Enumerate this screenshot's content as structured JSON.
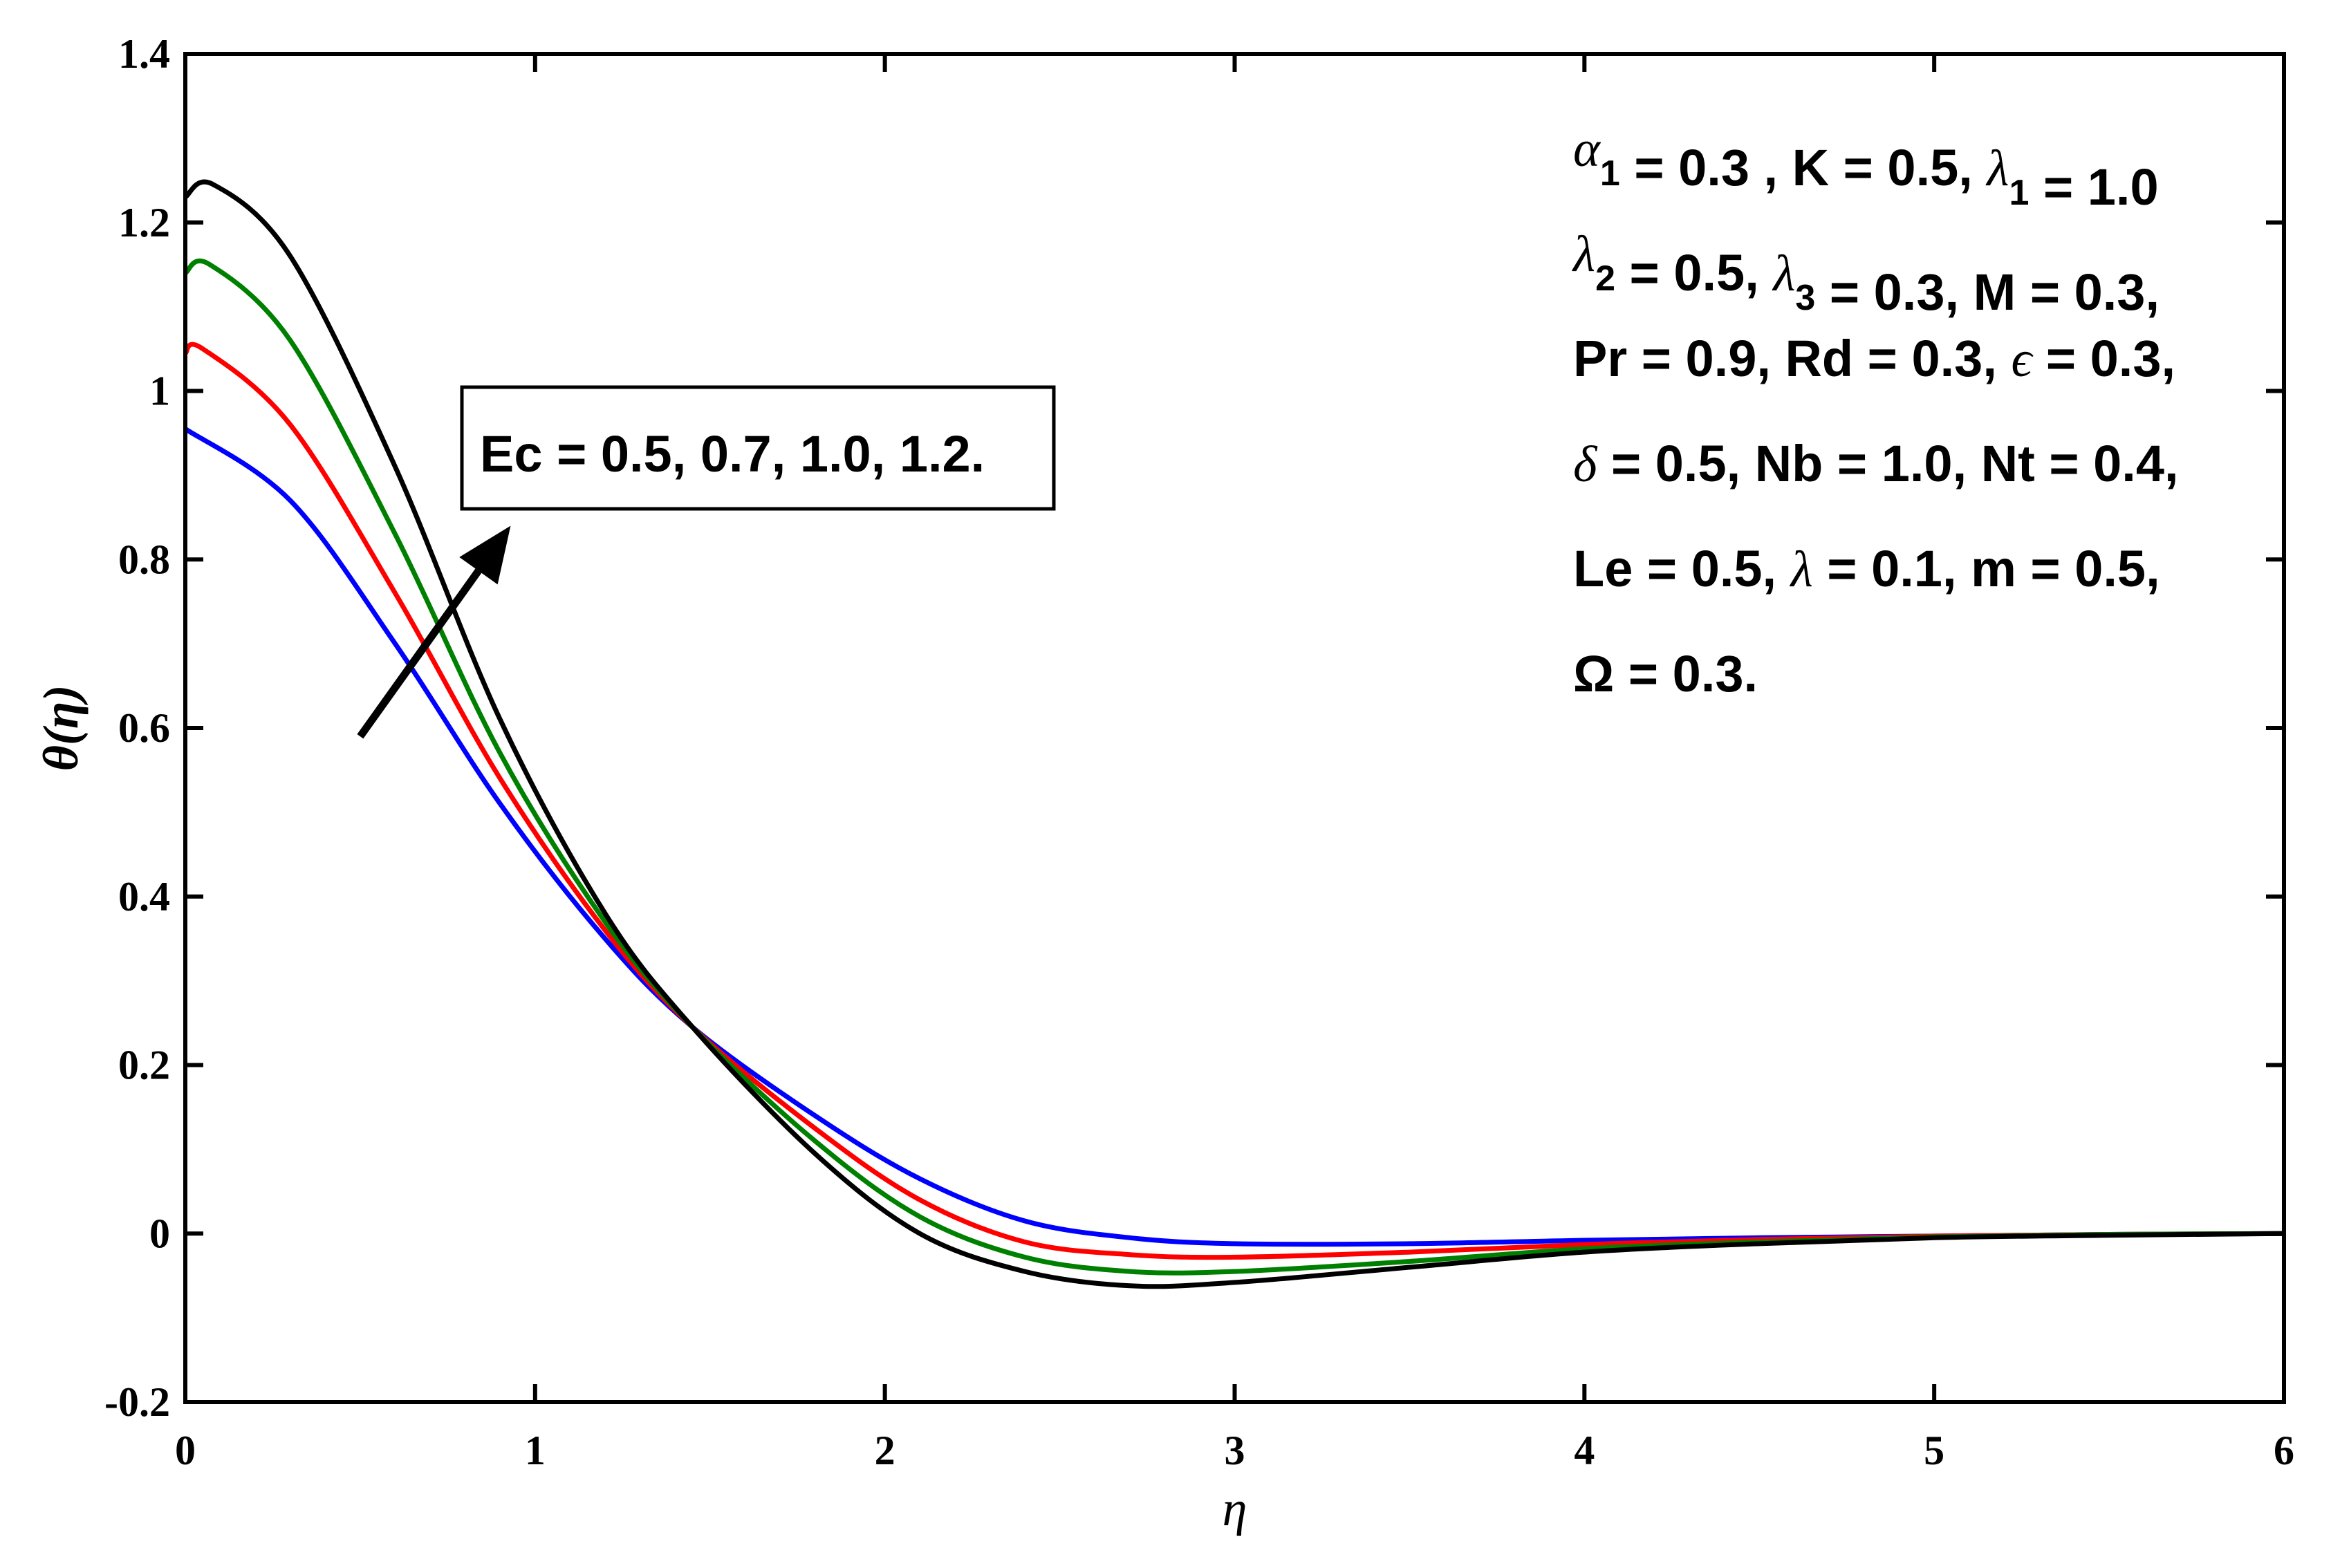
{
  "chart_data": {
    "type": "line",
    "xlabel": "η",
    "ylabel": "θ(η)",
    "xlim": [
      0,
      6
    ],
    "ylim": [
      -0.2,
      1.4
    ],
    "xticks": [
      "0",
      "1",
      "2",
      "3",
      "4",
      "5",
      "6"
    ],
    "yticks": [
      "-0.2",
      "0",
      "0.2",
      "0.4",
      "0.6",
      "0.8",
      "1",
      "1.2",
      "1.4"
    ],
    "grid": false,
    "series": [
      {
        "color": "#0000ff",
        "x": [
          0,
          0.3,
          0.6,
          0.9,
          1.2,
          1.45,
          1.8,
          2.1,
          2.4,
          2.7,
          3.0,
          3.5,
          4.0,
          4.5,
          5.0,
          5.5,
          6.0
        ],
        "y": [
          0.955,
          0.87,
          0.7,
          0.51,
          0.35,
          0.245,
          0.14,
          0.065,
          0.015,
          -0.005,
          -0.012,
          -0.012,
          -0.008,
          -0.005,
          -0.003,
          -0.001,
          0.0
        ]
      },
      {
        "color": "#ff0000",
        "x": [
          0,
          0.05,
          0.3,
          0.6,
          0.9,
          1.2,
          1.45,
          1.8,
          2.1,
          2.4,
          2.7,
          3.0,
          3.5,
          4.0,
          4.5,
          5.0,
          5.5,
          6.0
        ],
        "y": [
          1.045,
          1.05,
          0.96,
          0.76,
          0.54,
          0.36,
          0.245,
          0.125,
          0.04,
          -0.01,
          -0.025,
          -0.028,
          -0.022,
          -0.013,
          -0.007,
          -0.003,
          -0.001,
          0.0
        ]
      },
      {
        "color": "#008000",
        "x": [
          0,
          0.07,
          0.3,
          0.6,
          0.9,
          1.2,
          1.45,
          1.8,
          2.1,
          2.4,
          2.7,
          3.0,
          3.5,
          4.0,
          4.5,
          5.0,
          5.5,
          6.0
        ],
        "y": [
          1.14,
          1.15,
          1.06,
          0.83,
          0.57,
          0.37,
          0.245,
          0.11,
          0.02,
          -0.028,
          -0.045,
          -0.045,
          -0.033,
          -0.018,
          -0.01,
          -0.004,
          -0.001,
          0.0
        ]
      },
      {
        "color": "#000000",
        "x": [
          0,
          0.08,
          0.3,
          0.6,
          0.9,
          1.2,
          1.45,
          1.8,
          2.1,
          2.4,
          2.7,
          3.0,
          3.5,
          4.0,
          4.5,
          5.0,
          5.5,
          6.0
        ],
        "y": [
          1.23,
          1.245,
          1.16,
          0.91,
          0.61,
          0.38,
          0.245,
          0.095,
          0.0,
          -0.045,
          -0.062,
          -0.058,
          -0.04,
          -0.022,
          -0.012,
          -0.005,
          -0.002,
          0.0
        ]
      }
    ],
    "arrow": {
      "from": [
        0.5,
        0.59
      ],
      "to": [
        0.93,
        0.84
      ]
    },
    "legend_box": {
      "text": "Ec = 0.5, 0.7, 1.0, 1.2."
    },
    "parameters": [
      [
        {
          "t": "α",
          "i": true
        },
        {
          "t": "1",
          "s": true
        },
        {
          "t": " = 0.3 , K = 0.5, "
        },
        {
          "t": "λ",
          "i": true
        },
        {
          "t": "1",
          "s": true
        },
        {
          "t": " = 1.0"
        }
      ],
      [
        {
          "t": "λ",
          "i": true
        },
        {
          "t": "2",
          "s": true
        },
        {
          "t": " = 0.5, "
        },
        {
          "t": "λ",
          "i": true
        },
        {
          "t": "3",
          "s": true
        },
        {
          "t": " = 0.3, M = 0.3,"
        }
      ],
      [
        {
          "t": "Pr = 0.9, Rd = 0.3, "
        },
        {
          "t": "ϵ",
          "i": true
        },
        {
          "t": " = 0.3,"
        }
      ],
      [
        {
          "t": "δ",
          "i": true
        },
        {
          "t": " = 0.5, Nb = 1.0, Nt = 0.4,"
        }
      ],
      [
        {
          "t": "Le = 0.5, "
        },
        {
          "t": "λ",
          "i": true
        },
        {
          "t": " = 0.1, m = 0.5,"
        }
      ],
      [
        {
          "t": "Ω = 0.3."
        }
      ]
    ]
  }
}
